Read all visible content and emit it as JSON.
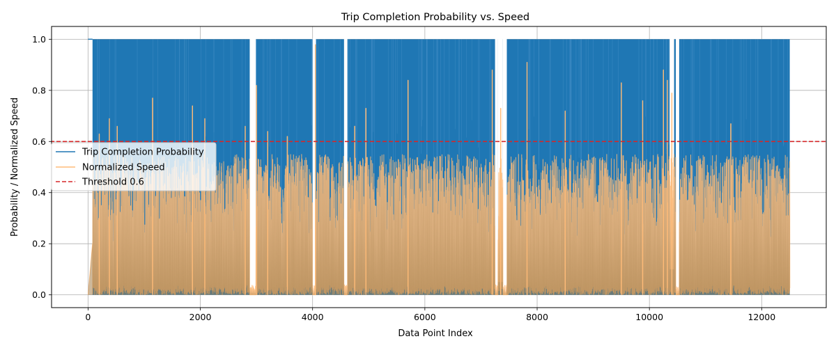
{
  "chart_data": {
    "type": "line",
    "title": "Trip Completion Probability vs. Speed",
    "xlabel": "Data Point Index",
    "ylabel": "Probability / Normalized Speed",
    "xlim": [
      -650,
      13150
    ],
    "ylim": [
      -0.05,
      1.05
    ],
    "xticks": [
      0,
      2000,
      4000,
      6000,
      8000,
      10000,
      12000
    ],
    "yticks": [
      0.0,
      0.2,
      0.4,
      0.6,
      0.8,
      1.0
    ],
    "xtick_labels": [
      "0",
      "2000",
      "4000",
      "6000",
      "8000",
      "10000",
      "12000"
    ],
    "ytick_labels": [
      "0.0",
      "0.2",
      "0.4",
      "0.6",
      "0.8",
      "1.0"
    ],
    "grid": true,
    "legend": "center-left",
    "x_range": [
      0,
      12500
    ],
    "series": [
      {
        "name": "Trip Completion Probability",
        "color": "#1f77b4",
        "kind": "dense-oscillating",
        "min": 0.0,
        "max": 1.0,
        "gaps": [
          [
            2880,
            2990
          ],
          [
            4000,
            4060
          ],
          [
            4560,
            4620
          ],
          [
            7250,
            7300
          ],
          [
            7390,
            7460
          ],
          [
            10470,
            10530
          ]
        ],
        "low_segments": [
          [
            7300,
            7390,
            0.05
          ],
          [
            10360,
            10440,
            0.1
          ]
        ]
      },
      {
        "name": "Normalized Speed",
        "color": "#ffbb78",
        "kind": "dense-oscillating",
        "min": 0.0,
        "typical_max": 0.55,
        "peaks": [
          {
            "x": 200,
            "y": 0.63
          },
          {
            "x": 380,
            "y": 0.69
          },
          {
            "x": 520,
            "y": 0.66
          },
          {
            "x": 1150,
            "y": 0.77
          },
          {
            "x": 1860,
            "y": 0.74
          },
          {
            "x": 2080,
            "y": 0.69
          },
          {
            "x": 2800,
            "y": 0.66
          },
          {
            "x": 3000,
            "y": 0.82
          },
          {
            "x": 3200,
            "y": 0.64
          },
          {
            "x": 3550,
            "y": 0.62
          },
          {
            "x": 4050,
            "y": 0.98
          },
          {
            "x": 4750,
            "y": 0.66
          },
          {
            "x": 4950,
            "y": 0.73
          },
          {
            "x": 5700,
            "y": 0.84
          },
          {
            "x": 7200,
            "y": 0.88
          },
          {
            "x": 7350,
            "y": 0.73
          },
          {
            "x": 7820,
            "y": 0.91
          },
          {
            "x": 8500,
            "y": 0.72
          },
          {
            "x": 9500,
            "y": 0.83
          },
          {
            "x": 9880,
            "y": 0.76
          },
          {
            "x": 10250,
            "y": 0.88
          },
          {
            "x": 10320,
            "y": 0.84
          },
          {
            "x": 10400,
            "y": 0.79
          },
          {
            "x": 11450,
            "y": 0.67
          }
        ]
      },
      {
        "name": "Threshold 0.6",
        "color": "#d62728",
        "kind": "hline",
        "y": 0.6
      }
    ]
  }
}
